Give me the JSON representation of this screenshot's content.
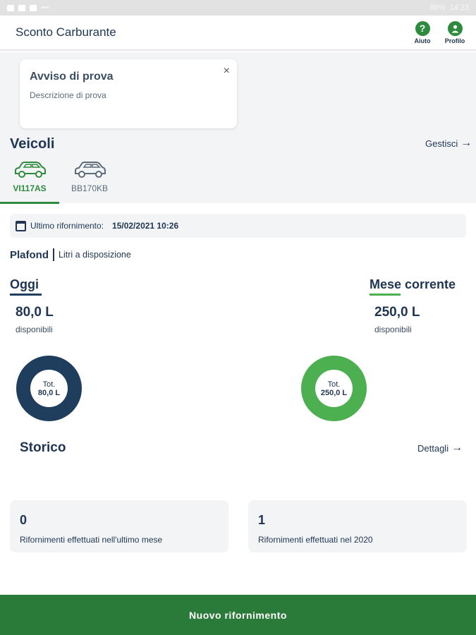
{
  "status_bar": {
    "battery": "86%",
    "time": "14:23"
  },
  "app": {
    "title": "Sconto Carburante",
    "help_label": "Aiuto",
    "profile_label": "Profilo",
    "accent": "#2e8b3e"
  },
  "notice": {
    "title": "Avviso di prova",
    "description": "Descrizione di prova",
    "close_glyph": "×"
  },
  "vehicles": {
    "heading": "Veicoli",
    "manage_label": "Gestisci",
    "items": [
      {
        "plate": "VI117AS",
        "active": true
      },
      {
        "plate": "BB170KB",
        "active": false
      }
    ]
  },
  "last_refuel": {
    "label": "Ultimo rifornimento:",
    "date": "15/02/2021 10:26"
  },
  "plafond": {
    "title": "Plafond",
    "subtitle": "Litri a disposizione",
    "today": {
      "label": "Oggi",
      "amount": "80,0 L",
      "available": "disponibili",
      "tot_label": "Tot.",
      "tot_value": "80,0 L",
      "color": "#1f3d5c"
    },
    "month": {
      "label": "Mese corrente",
      "amount": "250,0 L",
      "available": "disponibili",
      "tot_label": "Tot.",
      "tot_value": "250,0 L",
      "color": "#4caf50"
    }
  },
  "history": {
    "heading": "Storico",
    "details_label": "Dettagli",
    "cards": [
      {
        "value": "0",
        "label": "Rifornimenti effettuati nell'ultimo mese"
      },
      {
        "value": "1",
        "label": "Rifornimenti effettuati nel 2020"
      }
    ]
  },
  "cta": {
    "label": "Nuovo rifornimento"
  }
}
